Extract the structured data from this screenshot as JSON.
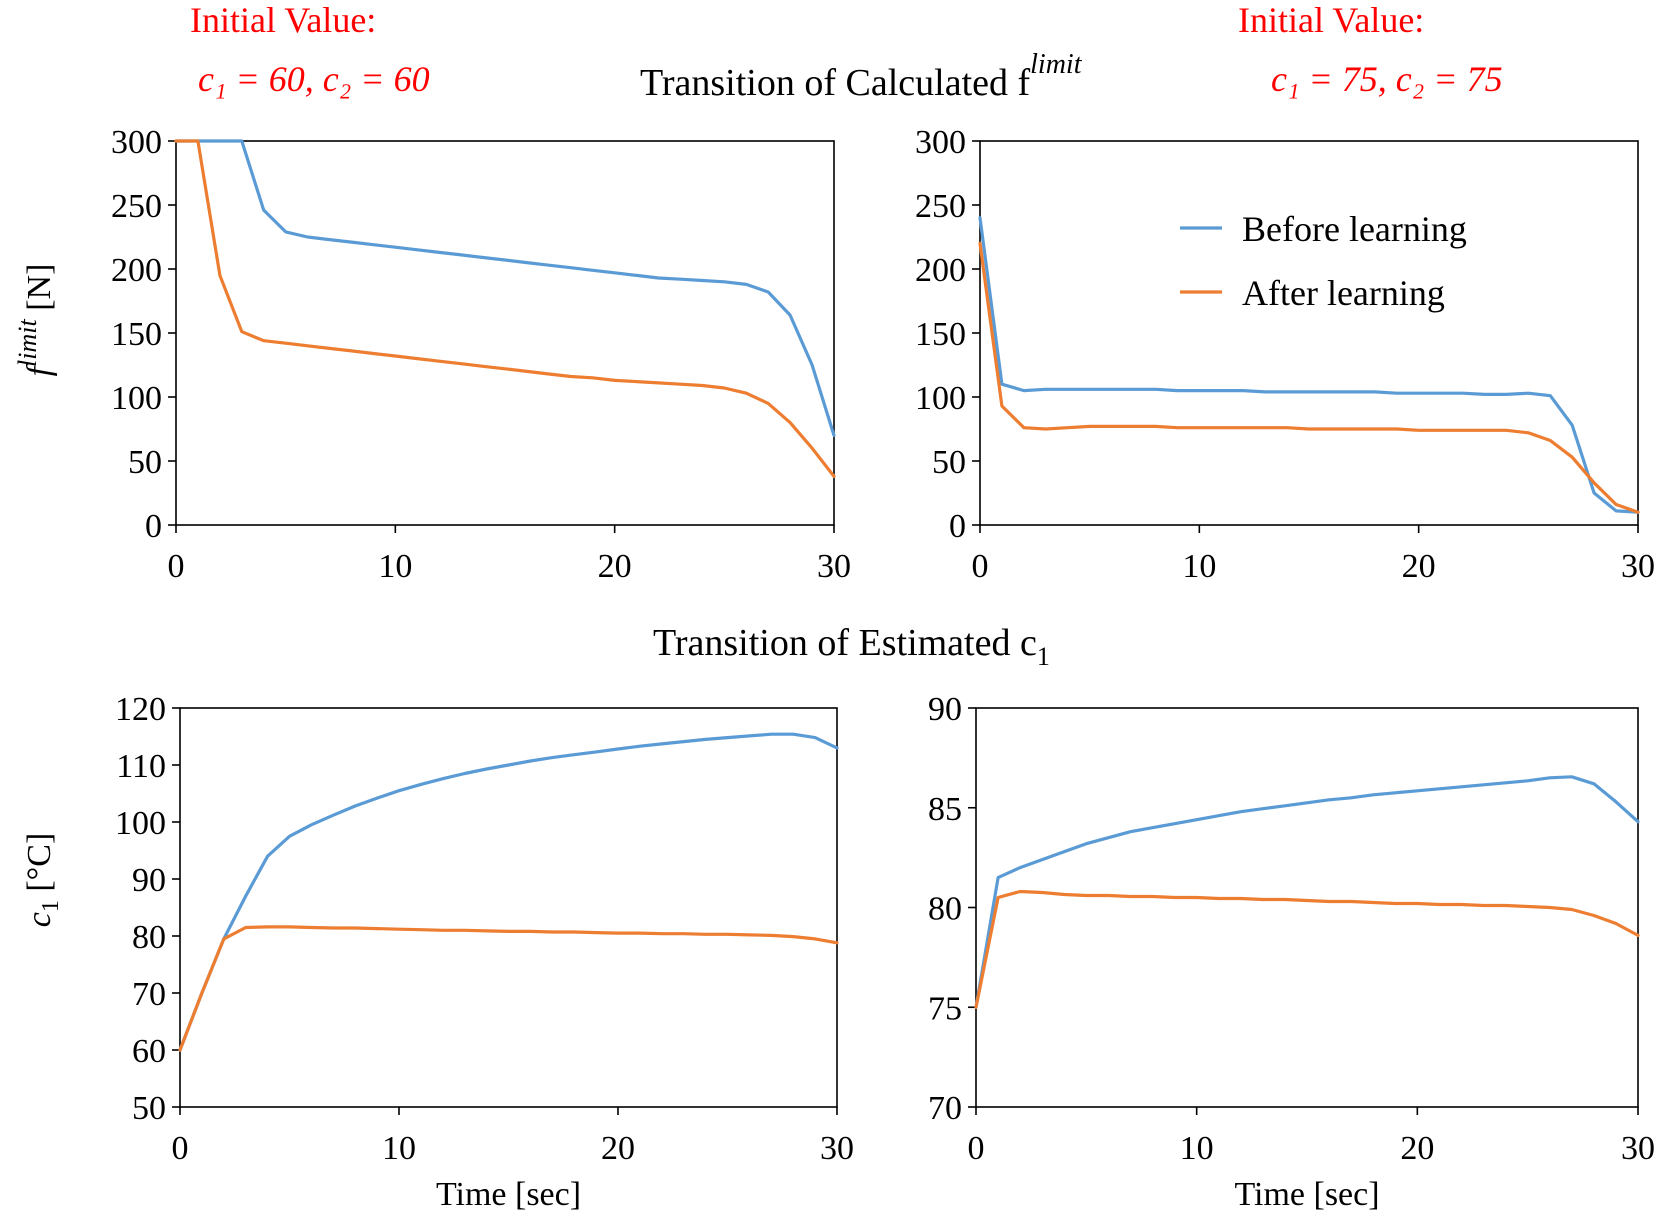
{
  "annotations": {
    "left_label": "Initial Value:",
    "left_values": "c₁ = 60, c₂ = 60",
    "right_label": "Initial Value:",
    "right_values": "c₁ = 75, c₂ = 75"
  },
  "section_titles": {
    "top": "Transition of Calculated f",
    "top_sup": "limit",
    "bottom": "Transition of Estimated c",
    "bottom_sub": "1"
  },
  "legend": {
    "before": "Before learning",
    "after": "After learning"
  },
  "colors": {
    "before": "#5b9bd5",
    "after": "#ed7d31",
    "annotation": "#ff0000"
  },
  "chart_data": [
    {
      "type": "line",
      "id": "top-left",
      "ylabel": "f limit [N]",
      "xlabel": "",
      "xlim": [
        0,
        30
      ],
      "ylim": [
        0,
        300
      ],
      "xticks": [
        0,
        10,
        20,
        30
      ],
      "yticks": [
        0,
        50,
        100,
        150,
        200,
        250,
        300
      ],
      "series": [
        {
          "name": "Before learning",
          "x": [
            0,
            1,
            2,
            3,
            4,
            5,
            6,
            7,
            8,
            9,
            10,
            11,
            12,
            13,
            14,
            15,
            16,
            17,
            18,
            19,
            20,
            21,
            22,
            23,
            24,
            25,
            26,
            27,
            28,
            29,
            30
          ],
          "values": [
            300,
            300,
            300,
            300,
            246,
            229,
            225,
            223,
            221,
            219,
            217,
            215,
            213,
            211,
            209,
            207,
            205,
            203,
            201,
            199,
            197,
            195,
            193,
            192,
            191,
            190,
            188,
            182,
            164,
            125,
            70
          ]
        },
        {
          "name": "After learning",
          "x": [
            0,
            1,
            2,
            3,
            4,
            5,
            6,
            7,
            8,
            9,
            10,
            11,
            12,
            13,
            14,
            15,
            16,
            17,
            18,
            19,
            20,
            21,
            22,
            23,
            24,
            25,
            26,
            27,
            28,
            29,
            30
          ],
          "values": [
            300,
            300,
            195,
            151,
            144,
            142,
            140,
            138,
            136,
            134,
            132,
            130,
            128,
            126,
            124,
            122,
            120,
            118,
            116,
            115,
            113,
            112,
            111,
            110,
            109,
            107,
            103,
            95,
            80,
            60,
            38
          ]
        }
      ]
    },
    {
      "type": "line",
      "id": "top-right",
      "ylabel": "",
      "xlabel": "",
      "xlim": [
        0,
        30
      ],
      "ylim": [
        0,
        300
      ],
      "xticks": [
        0,
        10,
        20,
        30
      ],
      "yticks": [
        0,
        50,
        100,
        150,
        200,
        250,
        300
      ],
      "series": [
        {
          "name": "Before learning",
          "x": [
            0,
            1,
            2,
            3,
            4,
            5,
            6,
            7,
            8,
            9,
            10,
            11,
            12,
            13,
            14,
            15,
            16,
            17,
            18,
            19,
            20,
            21,
            22,
            23,
            24,
            25,
            26,
            27,
            28,
            29,
            30
          ],
          "values": [
            240,
            110,
            105,
            106,
            106,
            106,
            106,
            106,
            106,
            105,
            105,
            105,
            105,
            104,
            104,
            104,
            104,
            104,
            104,
            103,
            103,
            103,
            103,
            102,
            102,
            103,
            101,
            78,
            25,
            11,
            10
          ]
        },
        {
          "name": "After learning",
          "x": [
            0,
            1,
            2,
            3,
            4,
            5,
            6,
            7,
            8,
            9,
            10,
            11,
            12,
            13,
            14,
            15,
            16,
            17,
            18,
            19,
            20,
            21,
            22,
            23,
            24,
            25,
            26,
            27,
            28,
            29,
            30
          ],
          "values": [
            220,
            93,
            76,
            75,
            76,
            77,
            77,
            77,
            77,
            76,
            76,
            76,
            76,
            76,
            76,
            75,
            75,
            75,
            75,
            75,
            74,
            74,
            74,
            74,
            74,
            72,
            66,
            53,
            33,
            16,
            10
          ]
        }
      ]
    },
    {
      "type": "line",
      "id": "bottom-left",
      "ylabel": "c1 [°C]",
      "xlabel": "Time [sec]",
      "xlim": [
        0,
        30
      ],
      "ylim": [
        50,
        120
      ],
      "xticks": [
        0,
        10,
        20,
        30
      ],
      "yticks": [
        50,
        60,
        70,
        80,
        90,
        100,
        110,
        120
      ],
      "series": [
        {
          "name": "Before learning",
          "x": [
            0,
            1,
            2,
            3,
            4,
            5,
            6,
            7,
            8,
            9,
            10,
            11,
            12,
            13,
            14,
            15,
            16,
            17,
            18,
            19,
            20,
            21,
            22,
            23,
            24,
            25,
            26,
            27,
            28,
            29,
            30
          ],
          "values": [
            60,
            70,
            79.5,
            87,
            94,
            97.5,
            99.5,
            101.2,
            102.8,
            104.2,
            105.5,
            106.6,
            107.6,
            108.5,
            109.3,
            110,
            110.7,
            111.3,
            111.8,
            112.3,
            112.8,
            113.3,
            113.7,
            114.1,
            114.5,
            114.8,
            115.1,
            115.4,
            115.4,
            114.8,
            113
          ]
        },
        {
          "name": "After learning",
          "x": [
            0,
            1,
            2,
            3,
            4,
            5,
            6,
            7,
            8,
            9,
            10,
            11,
            12,
            13,
            14,
            15,
            16,
            17,
            18,
            19,
            20,
            21,
            22,
            23,
            24,
            25,
            26,
            27,
            28,
            29,
            30
          ],
          "values": [
            60,
            70,
            79.5,
            81.5,
            81.6,
            81.6,
            81.5,
            81.4,
            81.4,
            81.3,
            81.2,
            81.1,
            81,
            81,
            80.9,
            80.8,
            80.8,
            80.7,
            80.7,
            80.6,
            80.5,
            80.5,
            80.4,
            80.4,
            80.3,
            80.3,
            80.2,
            80.1,
            79.9,
            79.5,
            78.8
          ]
        }
      ]
    },
    {
      "type": "line",
      "id": "bottom-right",
      "ylabel": "",
      "xlabel": "Time [sec]",
      "xlim": [
        0,
        30
      ],
      "ylim": [
        70,
        90
      ],
      "xticks": [
        0,
        10,
        20,
        30
      ],
      "yticks": [
        70,
        75,
        80,
        85,
        90
      ],
      "series": [
        {
          "name": "Before learning",
          "x": [
            0,
            1,
            2,
            3,
            4,
            5,
            6,
            7,
            8,
            9,
            10,
            11,
            12,
            13,
            14,
            15,
            16,
            17,
            18,
            19,
            20,
            21,
            22,
            23,
            24,
            25,
            26,
            27,
            28,
            29,
            30
          ],
          "values": [
            75,
            81.5,
            82,
            82.4,
            82.8,
            83.2,
            83.5,
            83.8,
            84,
            84.2,
            84.4,
            84.6,
            84.8,
            84.95,
            85.1,
            85.25,
            85.4,
            85.5,
            85.65,
            85.75,
            85.85,
            85.95,
            86.05,
            86.15,
            86.25,
            86.35,
            86.5,
            86.55,
            86.2,
            85.3,
            84.3
          ]
        },
        {
          "name": "After learning",
          "x": [
            0,
            1,
            2,
            3,
            4,
            5,
            6,
            7,
            8,
            9,
            10,
            11,
            12,
            13,
            14,
            15,
            16,
            17,
            18,
            19,
            20,
            21,
            22,
            23,
            24,
            25,
            26,
            27,
            28,
            29,
            30
          ],
          "values": [
            75,
            80.5,
            80.8,
            80.75,
            80.65,
            80.6,
            80.6,
            80.55,
            80.55,
            80.5,
            80.5,
            80.45,
            80.45,
            80.4,
            80.4,
            80.35,
            80.3,
            80.3,
            80.25,
            80.2,
            80.2,
            80.15,
            80.15,
            80.1,
            80.1,
            80.05,
            80,
            79.9,
            79.6,
            79.2,
            78.6
          ]
        }
      ]
    }
  ]
}
